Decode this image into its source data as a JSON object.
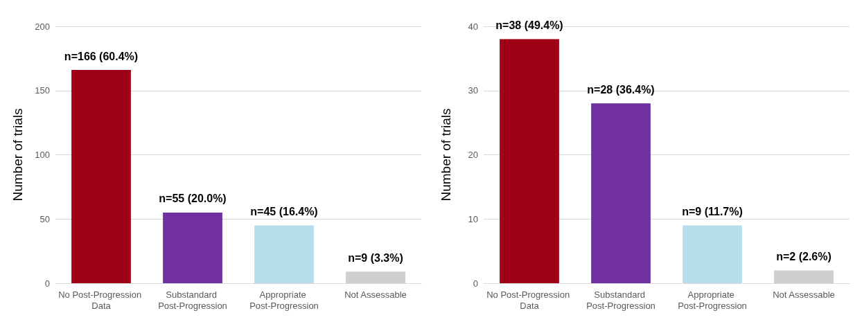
{
  "chart_data": [
    {
      "type": "bar",
      "ylabel": "Number of trials",
      "categories": [
        "No Post-Progression Data",
        "Substandard Post-Progression",
        "Appropriate Post-Progression",
        "Not Assessable"
      ],
      "values": [
        166,
        55,
        45,
        9
      ],
      "colors": [
        "#9e0016",
        "#7030a0",
        "#b7dde8",
        "#d0cece"
      ],
      "value_labels": [
        "n=166 (60.4%)",
        "n=55 (20.0%)",
        "n=45 (16.4%)",
        "n=9 (3.3%)"
      ],
      "ylim": [
        0,
        200
      ],
      "yticks": [
        0,
        50,
        100,
        150,
        200
      ],
      "grid": "y"
    },
    {
      "type": "bar",
      "ylabel": "Number of trials",
      "categories": [
        "No Post-Progression Data",
        "Substandard Post-Progression",
        "Appropriate Post-Progression",
        "Not Assessable"
      ],
      "values": [
        38,
        28,
        9,
        2
      ],
      "colors": [
        "#9e0016",
        "#7030a0",
        "#b7dde8",
        "#d0cece"
      ],
      "value_labels": [
        "n=38 (49.4%)",
        "n=28 (36.4%)",
        "n=9 (11.7%)",
        "n=2 (2.6%)"
      ],
      "ylim": [
        0,
        40
      ],
      "yticks": [
        0,
        10,
        20,
        30,
        40
      ],
      "grid": "y"
    }
  ]
}
